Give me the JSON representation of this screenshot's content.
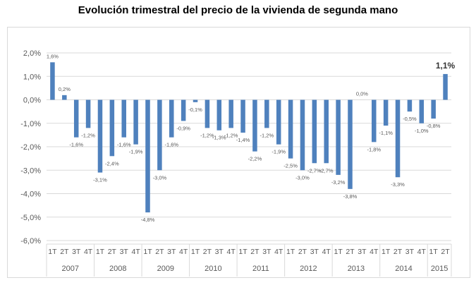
{
  "chart_data": {
    "type": "bar",
    "title": "Evolución trimestral del precio de la vivienda de segunda mano",
    "xlabel": "",
    "ylabel": "",
    "ylim": [
      -6,
      2
    ],
    "yticks": [
      "2,0%",
      "1,0%",
      "0,0%",
      "-1,0%",
      "-2,0%",
      "-3,0%",
      "-4,0%",
      "-5,0%",
      "-6,0%"
    ],
    "grid": true,
    "bar_color": "#4f81bd",
    "years": [
      "2007",
      "2008",
      "2009",
      "2010",
      "2011",
      "2012",
      "2013",
      "2014",
      "2015"
    ],
    "quarters_per_year": [
      4,
      4,
      4,
      4,
      4,
      4,
      4,
      4,
      2
    ],
    "categories": [
      "1T",
      "2T",
      "3T",
      "4T",
      "1T",
      "2T",
      "3T",
      "4T",
      "1T",
      "2T",
      "3T",
      "4T",
      "1T",
      "2T",
      "3T",
      "4T",
      "1T",
      "2T",
      "3T",
      "4T",
      "1T",
      "2T",
      "3T",
      "4T",
      "1T",
      "2T",
      "3T",
      "4T",
      "1T",
      "2T",
      "3T",
      "4T",
      "1T",
      "2T"
    ],
    "values": [
      1.6,
      0.2,
      -1.6,
      -1.2,
      -3.1,
      -2.4,
      -1.6,
      -1.9,
      -4.8,
      -3.0,
      -1.6,
      -0.9,
      -0.1,
      -1.2,
      -1.3,
      -1.2,
      -1.4,
      -2.2,
      -1.2,
      -1.9,
      -2.5,
      -3.0,
      -2.7,
      -2.7,
      -3.2,
      -3.8,
      0.0,
      -1.8,
      -1.1,
      -3.3,
      -0.5,
      -1.0,
      -0.8,
      1.1
    ],
    "data_labels": [
      "1,6%",
      "0,2%",
      "-1,6%",
      "-1,2%",
      "-3,1%",
      "-2,4%",
      "-1,6%",
      "-1,9%",
      "-4,8%",
      "-3,0%",
      "-1,6%",
      "-0,9%",
      "-0,1%",
      "-1,2%",
      "-1,3%",
      "-1,2%",
      "-1,4%",
      "-2,2%",
      "-1,2%",
      "-1,9%",
      "-2,5%",
      "-3,0%",
      "-2,7%",
      "-2,7%",
      "-3,2%",
      "-3,8%",
      "0,0%",
      "-1,8%",
      "-1,1%",
      "-3,3%",
      "-0,5%",
      "-1,0%",
      "-0,8%",
      "1,1%"
    ],
    "highlight_last_label": true
  }
}
